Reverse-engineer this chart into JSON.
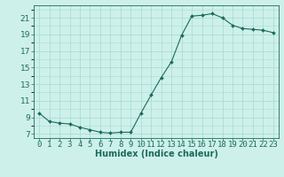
{
  "x_values": [
    0,
    1,
    2,
    3,
    4,
    5,
    6,
    7,
    8,
    9,
    10,
    11,
    12,
    13,
    14,
    15,
    16,
    17,
    18,
    19,
    20,
    21,
    22,
    23
  ],
  "y_values": [
    9.5,
    8.5,
    8.3,
    8.2,
    7.8,
    7.5,
    7.2,
    7.1,
    7.2,
    7.2,
    9.5,
    11.7,
    13.8,
    15.7,
    18.9,
    21.2,
    21.3,
    21.5,
    21.0,
    20.1,
    19.7,
    19.6,
    19.5,
    19.2
  ],
  "line_color": "#1a6b5c",
  "marker": "D",
  "marker_size": 2,
  "bg_color": "#cef0ea",
  "grid_color": "#a8ddd6",
  "axis_color": "#1a6b5c",
  "xlabel": "Humidex (Indice chaleur)",
  "xlabel_fontsize": 7,
  "ylabel_ticks": [
    7,
    9,
    11,
    13,
    15,
    17,
    19,
    21
  ],
  "xlim": [
    -0.5,
    23.5
  ],
  "ylim": [
    6.5,
    22.5
  ],
  "xticks": [
    0,
    1,
    2,
    3,
    4,
    5,
    6,
    7,
    8,
    9,
    10,
    11,
    12,
    13,
    14,
    15,
    16,
    17,
    18,
    19,
    20,
    21,
    22,
    23
  ],
  "tick_fontsize": 6.5
}
